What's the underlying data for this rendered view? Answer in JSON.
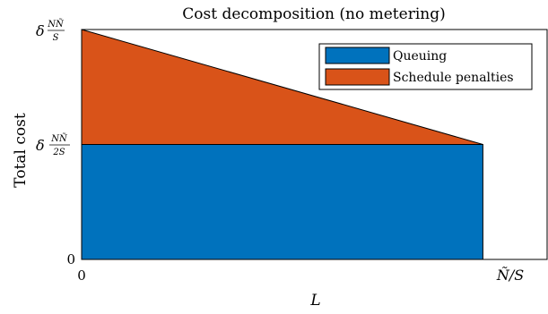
{
  "chart_data": {
    "type": "area",
    "title": "Cost decomposition (no metering)",
    "xlabel": "L",
    "ylabel": "Total cost",
    "x": [
      0,
      1
    ],
    "x_ticks": [
      "0",
      "Ñ/S"
    ],
    "y_ticks": {
      "zero": "0",
      "half": {
        "prefix": "δ",
        "num": "NÑ",
        "den": "2S"
      },
      "full": {
        "prefix": "δ",
        "num": "NÑ",
        "den": "S"
      }
    },
    "ylim": [
      0,
      1
    ],
    "xlim": [
      0,
      1.16
    ],
    "series": [
      {
        "name": "Queuing",
        "color": "#0072BD",
        "values": [
          0.5,
          0.5
        ]
      },
      {
        "name": "Schedule penalties",
        "color": "#D95319",
        "values": [
          0.5,
          0
        ]
      }
    ],
    "legend": "top-right",
    "grid": false
  }
}
